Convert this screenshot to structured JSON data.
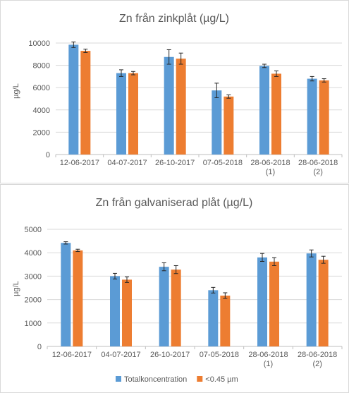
{
  "chart_data": [
    {
      "type": "bar",
      "title": "Zn från zinkplåt (µg/L)",
      "ylabel": "µg/L",
      "ylim": [
        0,
        10000
      ],
      "yticks": [
        0,
        2000,
        4000,
        6000,
        8000,
        10000
      ],
      "grid": true,
      "categories": [
        [
          "12-06-2017"
        ],
        [
          "04-07-2017"
        ],
        [
          "26-10-2017"
        ],
        [
          "07-05-2018"
        ],
        [
          "28-06-2018",
          "(1)"
        ],
        [
          "28-06-2018",
          "(2)"
        ]
      ],
      "series": [
        {
          "name": "Totalkoncentration",
          "color": "#5b9bd5",
          "values": [
            9850,
            7300,
            8750,
            5750,
            7950,
            6800
          ],
          "errors": [
            250,
            300,
            650,
            650,
            150,
            200
          ]
        },
        {
          "name": "<0.45 µm",
          "color": "#ed7d31",
          "values": [
            9300,
            7300,
            8600,
            5200,
            7250,
            6650
          ],
          "errors": [
            150,
            150,
            500,
            150,
            250,
            150
          ]
        }
      ]
    },
    {
      "type": "bar",
      "title": "Zn från galvaniserad plåt (µg/L)",
      "ylabel": "µg/L",
      "ylim": [
        0,
        5000
      ],
      "yticks": [
        0,
        1000,
        2000,
        3000,
        4000,
        5000
      ],
      "grid": true,
      "legend": "bottom",
      "categories": [
        [
          "12-06-2017"
        ],
        [
          "04-07-2017"
        ],
        [
          "26-10-2017"
        ],
        [
          "07-05-2018"
        ],
        [
          "28-06-2018",
          "(1)"
        ],
        [
          "28-06-2018",
          "(2)"
        ]
      ],
      "series": [
        {
          "name": "Totalkoncentration",
          "color": "#5b9bd5",
          "values": [
            4420,
            3000,
            3400,
            2400,
            3800,
            3970
          ],
          "errors": [
            50,
            120,
            170,
            120,
            170,
            150
          ]
        },
        {
          "name": "<0.45 µm",
          "color": "#ed7d31",
          "values": [
            4100,
            2850,
            3280,
            2170,
            3620,
            3700
          ],
          "errors": [
            50,
            120,
            170,
            120,
            170,
            150
          ]
        }
      ]
    }
  ]
}
